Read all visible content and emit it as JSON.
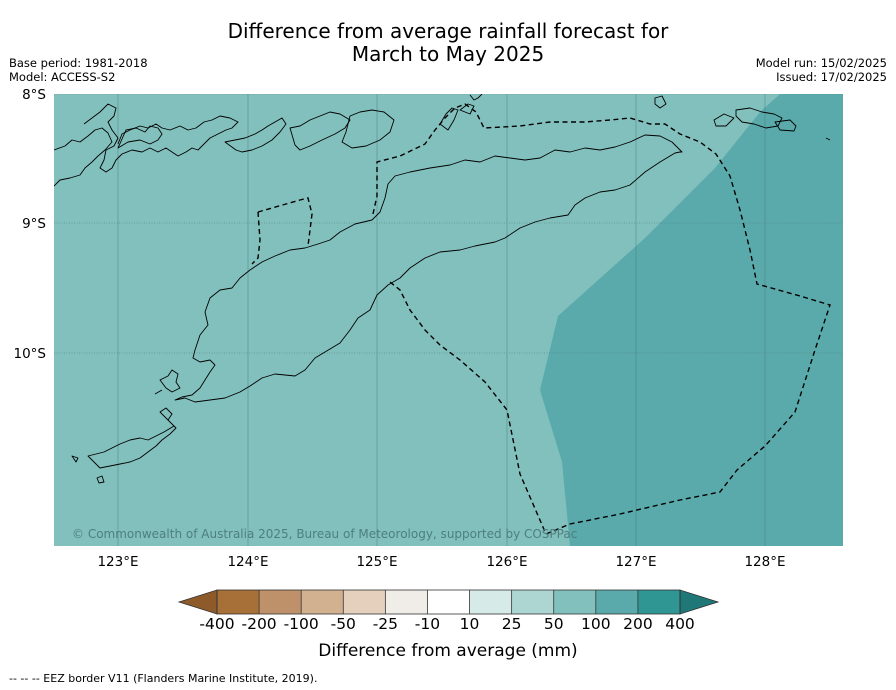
{
  "title_line1": "Difference from average rainfall forecast for",
  "title_line2": "March to May 2025",
  "meta": {
    "base_period": "Base period: 1981-2018",
    "model": "Model: ACCESS-S2",
    "model_run": "Model run: 15/02/2025",
    "issued": "Issued: 17/02/2025"
  },
  "lat_labels": [
    "8°S",
    "9°S",
    "10°S"
  ],
  "lon_labels": [
    "123°E",
    "124°E",
    "125°E",
    "126°E",
    "127°E",
    "128°E"
  ],
  "copyright": "© Commonwealth of Australia 2025, Bureau of Meteorology, supported by COSPPac",
  "colorbar": {
    "labels": [
      "-400",
      "-200",
      "-100",
      "-50",
      "-25",
      "-10",
      "10",
      "25",
      "50",
      "100",
      "200",
      "400"
    ],
    "colors": [
      "#a87039",
      "#bf916a",
      "#d2b191",
      "#e4d0bd",
      "#f0ede9",
      "#ffffff",
      "#d6ebe8",
      "#add6d2",
      "#82c0bd",
      "#5aaaab",
      "#309694"
    ],
    "under_color": "#8e5a2a",
    "over_color": "#1f7877",
    "title": "Difference from average (mm)"
  },
  "map_fill": {
    "category_50_100": "#82c0bd",
    "category_100_200": "#5aaaab"
  },
  "eez_note": "--  --  -- EEZ border V11 (Flanders Marine Institute, 2019)."
}
